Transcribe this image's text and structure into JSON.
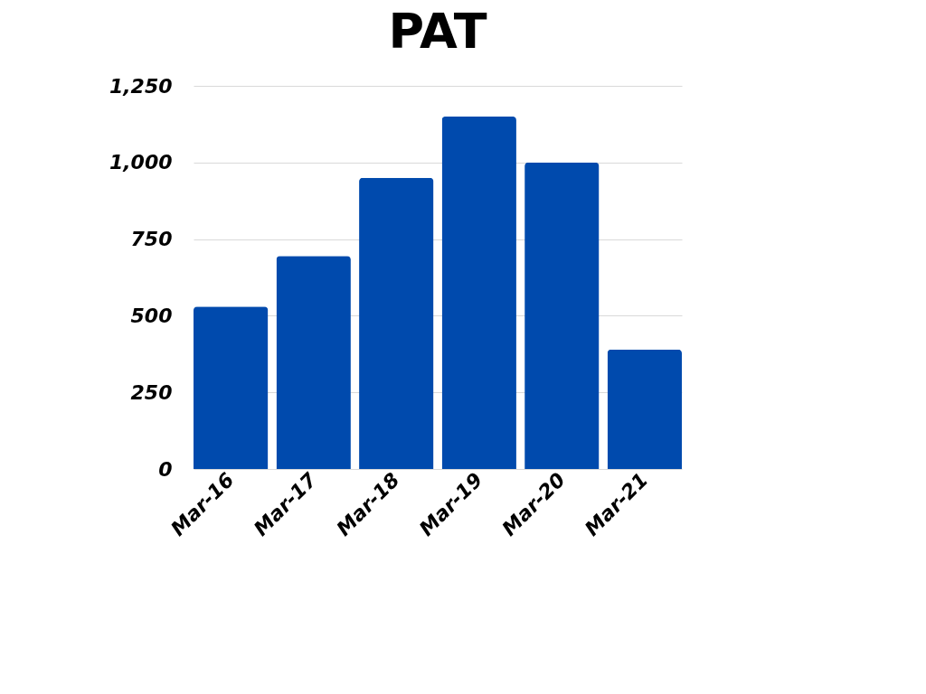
{
  "chart_data": {
    "type": "bar",
    "title": "PAT",
    "categories": [
      "Mar-16",
      "Mar-17",
      "Mar-18",
      "Mar-19",
      "Mar-20",
      "Mar-21"
    ],
    "values": [
      530,
      695,
      950,
      1150,
      1000,
      390
    ],
    "color": "#004aad",
    "ylim": [
      0,
      1250
    ],
    "yticks": [
      0,
      250,
      500,
      750,
      {
        "value": 1000,
        "label": "1,000"
      },
      {
        "value": 1250,
        "label": "1,250"
      }
    ],
    "grid": "y"
  }
}
